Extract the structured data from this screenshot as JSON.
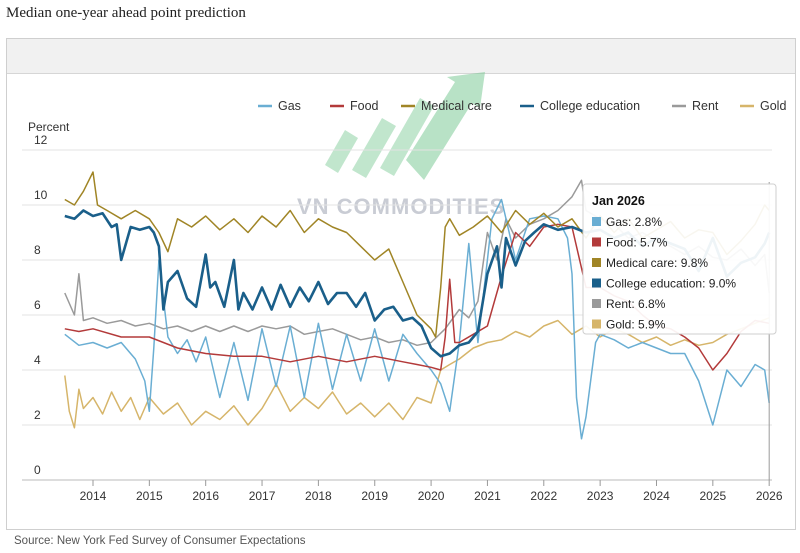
{
  "page_title": "Median one-year ahead point prediction",
  "source": "Source: New York Fed Survey of Consumer Expectations",
  "watermark": "VN COMMODITIES",
  "chart_data": {
    "type": "line",
    "ylabel": "Percent",
    "ylim": [
      0,
      12
    ],
    "yticks": [
      0,
      2,
      4,
      6,
      8,
      10,
      12
    ],
    "xlim": [
      2013.45,
      2026.05
    ],
    "xticks": [
      2014,
      2015,
      2016,
      2017,
      2018,
      2019,
      2020,
      2021,
      2022,
      2023,
      2024,
      2025,
      2026
    ],
    "grid": true,
    "legend_position": "top-right",
    "tooltip": {
      "title": "Jan 2026",
      "x": 2026.0,
      "items": [
        {
          "series": "Gas",
          "text": "Gas: 2.8%"
        },
        {
          "series": "Food",
          "text": "Food: 5.7%"
        },
        {
          "series": "Medical care",
          "text": "Medical care: 9.8%"
        },
        {
          "series": "College education",
          "text": "College education: 9.0%"
        },
        {
          "series": "Rent",
          "text": "Rent: 6.8%"
        },
        {
          "series": "Gold",
          "text": "Gold: 5.9%"
        }
      ]
    },
    "series": [
      {
        "name": "Gas",
        "color": "#6aaed3",
        "x": [
          2013.5,
          2013.75,
          2014.0,
          2014.25,
          2014.5,
          2014.75,
          2014.92,
          2015.0,
          2015.08,
          2015.17,
          2015.33,
          2015.5,
          2015.67,
          2015.83,
          2016.0,
          2016.25,
          2016.5,
          2016.75,
          2017.0,
          2017.25,
          2017.5,
          2017.75,
          2018.0,
          2018.25,
          2018.5,
          2018.75,
          2019.0,
          2019.25,
          2019.5,
          2019.75,
          2020.0,
          2020.17,
          2020.33,
          2020.5,
          2020.67,
          2020.83,
          2021.0,
          2021.08,
          2021.25,
          2021.5,
          2021.75,
          2022.0,
          2022.25,
          2022.42,
          2022.5,
          2022.58,
          2022.67,
          2022.75,
          2022.92,
          2023.0,
          2023.25,
          2023.5,
          2023.75,
          2024.0,
          2024.25,
          2024.5,
          2024.75,
          2025.0,
          2025.25,
          2025.5,
          2025.75,
          2025.92,
          2026.0
        ],
        "y": [
          5.3,
          4.9,
          5.0,
          4.8,
          5.0,
          4.4,
          3.6,
          2.5,
          4.8,
          8.0,
          5.2,
          4.6,
          5.1,
          4.3,
          5.2,
          3.0,
          5.0,
          2.9,
          5.5,
          3.4,
          5.6,
          3.0,
          5.7,
          3.3,
          5.3,
          3.6,
          5.5,
          3.6,
          5.3,
          4.6,
          4.0,
          3.5,
          2.5,
          5.0,
          8.6,
          5.0,
          8.0,
          9.5,
          10.2,
          8.0,
          9.5,
          9.6,
          9.5,
          8.8,
          7.5,
          3.0,
          1.5,
          2.3,
          5.0,
          5.3,
          5.1,
          4.8,
          5.0,
          4.8,
          4.6,
          4.6,
          3.6,
          2.0,
          4.0,
          3.4,
          4.2,
          4.0,
          2.8
        ]
      },
      {
        "name": "Food",
        "color": "#b33a3a",
        "x": [
          2013.5,
          2013.75,
          2014.0,
          2014.5,
          2015.0,
          2015.5,
          2016.0,
          2016.5,
          2017.0,
          2017.5,
          2018.0,
          2018.5,
          2019.0,
          2019.5,
          2019.75,
          2020.0,
          2020.17,
          2020.25,
          2020.33,
          2020.42,
          2020.5,
          2020.75,
          2021.0,
          2021.25,
          2021.5,
          2021.75,
          2022.0,
          2022.25,
          2022.5,
          2022.75,
          2023.0,
          2023.25,
          2023.5,
          2023.75,
          2024.0,
          2024.25,
          2024.5,
          2024.75,
          2025.0,
          2025.25,
          2025.5,
          2025.75,
          2026.0
        ],
        "y": [
          5.5,
          5.4,
          5.5,
          5.2,
          5.2,
          4.8,
          4.6,
          4.5,
          4.5,
          4.3,
          4.5,
          4.3,
          4.5,
          4.3,
          4.2,
          4.1,
          4.0,
          5.2,
          7.3,
          5.0,
          5.0,
          5.3,
          5.6,
          7.4,
          9.0,
          8.5,
          9.2,
          9.3,
          9.2,
          7.0,
          7.0,
          6.7,
          6.5,
          6.0,
          5.6,
          5.5,
          5.2,
          4.8,
          4.0,
          4.6,
          5.4,
          5.8,
          5.7
        ]
      },
      {
        "name": "Medical care",
        "color": "#a08526",
        "x": [
          2013.5,
          2013.67,
          2013.83,
          2014.0,
          2014.08,
          2014.25,
          2014.5,
          2014.75,
          2015.0,
          2015.17,
          2015.33,
          2015.5,
          2015.75,
          2016.0,
          2016.25,
          2016.5,
          2016.75,
          2017.0,
          2017.25,
          2017.5,
          2017.75,
          2018.0,
          2018.25,
          2018.5,
          2018.75,
          2019.0,
          2019.25,
          2019.5,
          2019.75,
          2020.0,
          2020.08,
          2020.17,
          2020.25,
          2020.33,
          2020.5,
          2020.75,
          2021.0,
          2021.25,
          2021.5,
          2021.75,
          2022.0,
          2022.25,
          2022.5,
          2022.75,
          2023.0,
          2023.25,
          2023.5,
          2023.75,
          2024.0,
          2024.25,
          2024.5,
          2024.75,
          2025.0,
          2025.25,
          2025.5,
          2025.75,
          2025.92,
          2026.0
        ],
        "y": [
          10.2,
          10.0,
          10.5,
          11.2,
          10.0,
          9.8,
          9.5,
          9.8,
          9.5,
          9.0,
          8.3,
          9.5,
          9.2,
          9.6,
          9.1,
          9.5,
          9.0,
          9.6,
          9.2,
          9.8,
          9.0,
          9.5,
          9.2,
          9.0,
          8.5,
          8.0,
          8.4,
          7.2,
          6.0,
          5.5,
          5.2,
          7.0,
          9.2,
          9.5,
          8.9,
          9.2,
          9.6,
          9.0,
          9.8,
          9.3,
          9.7,
          9.2,
          9.5,
          8.8,
          9.6,
          9.0,
          9.5,
          8.8,
          9.1,
          9.4,
          8.8,
          9.1,
          9.0,
          8.2,
          8.7,
          9.3,
          10.0,
          9.8
        ]
      },
      {
        "name": "College education",
        "color": "#1a5f8a",
        "x": [
          2013.5,
          2013.67,
          2013.83,
          2014.0,
          2014.17,
          2014.33,
          2014.42,
          2014.5,
          2014.67,
          2014.83,
          2015.0,
          2015.08,
          2015.17,
          2015.25,
          2015.33,
          2015.5,
          2015.67,
          2015.83,
          2016.0,
          2016.08,
          2016.17,
          2016.33,
          2016.5,
          2016.58,
          2016.67,
          2016.83,
          2017.0,
          2017.17,
          2017.33,
          2017.5,
          2017.67,
          2017.83,
          2018.0,
          2018.17,
          2018.33,
          2018.5,
          2018.67,
          2018.83,
          2019.0,
          2019.17,
          2019.33,
          2019.5,
          2019.67,
          2019.83,
          2020.0,
          2020.17,
          2020.33,
          2020.5,
          2020.67,
          2020.83,
          2021.0,
          2021.17,
          2021.25,
          2021.33,
          2021.5,
          2021.67,
          2021.83,
          2022.0,
          2022.25,
          2022.5,
          2022.75,
          2023.0,
          2023.25,
          2023.5,
          2023.75,
          2024.0,
          2024.25,
          2024.5,
          2024.75,
          2025.0,
          2025.25,
          2025.5,
          2025.75,
          2025.92,
          2026.0
        ],
        "y": [
          9.6,
          9.5,
          9.8,
          9.6,
          9.7,
          9.2,
          9.3,
          8.0,
          9.2,
          9.1,
          9.2,
          9.0,
          8.5,
          6.2,
          7.2,
          7.6,
          6.6,
          6.3,
          8.2,
          7.0,
          7.2,
          6.3,
          8.0,
          6.2,
          6.8,
          6.2,
          7.0,
          6.2,
          7.1,
          6.3,
          7.0,
          6.5,
          7.2,
          6.4,
          6.8,
          6.8,
          6.3,
          6.8,
          5.8,
          6.2,
          6.3,
          5.8,
          5.9,
          5.6,
          4.8,
          4.5,
          4.6,
          4.9,
          5.0,
          5.4,
          7.5,
          8.5,
          7.0,
          8.8,
          7.8,
          8.7,
          9.0,
          9.3,
          9.1,
          9.2,
          9.0,
          9.1,
          8.8,
          9.0,
          8.5,
          8.8,
          8.6,
          8.4,
          7.6,
          8.8,
          7.4,
          7.9,
          8.1,
          8.6,
          9.0
        ]
      },
      {
        "name": "Rent",
        "color": "#9a9a9a",
        "x": [
          2013.5,
          2013.67,
          2013.75,
          2013.83,
          2014.0,
          2014.25,
          2014.5,
          2014.75,
          2015.0,
          2015.25,
          2015.5,
          2015.75,
          2016.0,
          2016.25,
          2016.5,
          2016.75,
          2017.0,
          2017.25,
          2017.5,
          2017.75,
          2018.0,
          2018.25,
          2018.5,
          2018.75,
          2019.0,
          2019.25,
          2019.5,
          2019.75,
          2020.0,
          2020.25,
          2020.5,
          2020.67,
          2020.83,
          2021.0,
          2021.17,
          2021.33,
          2021.5,
          2021.75,
          2022.0,
          2022.25,
          2022.5,
          2022.67,
          2022.75,
          2023.0,
          2023.25,
          2023.5,
          2023.75,
          2024.0,
          2024.25,
          2024.5,
          2024.75,
          2025.0,
          2025.25,
          2025.5,
          2025.75,
          2025.92,
          2026.0
        ],
        "y": [
          6.8,
          6.0,
          7.5,
          5.8,
          5.9,
          5.7,
          5.8,
          5.6,
          5.7,
          5.5,
          5.6,
          5.4,
          5.6,
          5.4,
          5.6,
          5.4,
          5.6,
          5.5,
          5.6,
          5.3,
          5.4,
          5.5,
          5.3,
          5.1,
          5.2,
          5.0,
          5.1,
          4.9,
          5.0,
          5.5,
          6.2,
          5.9,
          6.5,
          9.0,
          8.0,
          9.5,
          8.8,
          9.3,
          9.5,
          9.8,
          10.3,
          10.9,
          9.8,
          9.5,
          9.3,
          8.8,
          9.0,
          8.7,
          8.5,
          8.2,
          8.5,
          8.1,
          8.0,
          8.4,
          7.8,
          8.2,
          6.8
        ]
      },
      {
        "name": "Gold",
        "color": "#d6b56a",
        "x": [
          2013.5,
          2013.58,
          2013.67,
          2013.75,
          2013.83,
          2014.0,
          2014.17,
          2014.33,
          2014.5,
          2014.67,
          2014.83,
          2015.0,
          2015.25,
          2015.5,
          2015.75,
          2016.0,
          2016.25,
          2016.5,
          2016.75,
          2017.0,
          2017.17,
          2017.25,
          2017.5,
          2017.75,
          2018.0,
          2018.25,
          2018.5,
          2018.75,
          2019.0,
          2019.25,
          2019.5,
          2019.75,
          2020.0,
          2020.17,
          2020.33,
          2020.5,
          2020.75,
          2021.0,
          2021.25,
          2021.5,
          2021.75,
          2022.0,
          2022.25,
          2022.5,
          2022.75,
          2023.0,
          2023.25,
          2023.5,
          2023.75,
          2024.0,
          2024.25,
          2024.5,
          2024.75,
          2025.0,
          2025.25,
          2025.5,
          2025.75,
          2026.0
        ],
        "y": [
          3.8,
          2.5,
          1.9,
          3.3,
          2.6,
          3.0,
          2.4,
          3.2,
          2.5,
          3.0,
          2.2,
          3.0,
          2.4,
          2.8,
          2.0,
          2.5,
          2.2,
          2.7,
          2.0,
          2.6,
          3.2,
          3.5,
          2.5,
          3.0,
          2.6,
          3.2,
          2.4,
          2.8,
          2.3,
          2.8,
          2.2,
          3.0,
          2.8,
          4.0,
          4.2,
          4.4,
          4.8,
          5.0,
          5.1,
          5.4,
          5.2,
          5.6,
          5.8,
          5.3,
          5.6,
          5.2,
          5.5,
          5.3,
          5.0,
          5.2,
          4.9,
          5.1,
          4.9,
          5.0,
          5.3,
          5.5,
          5.7,
          5.9
        ]
      }
    ]
  }
}
